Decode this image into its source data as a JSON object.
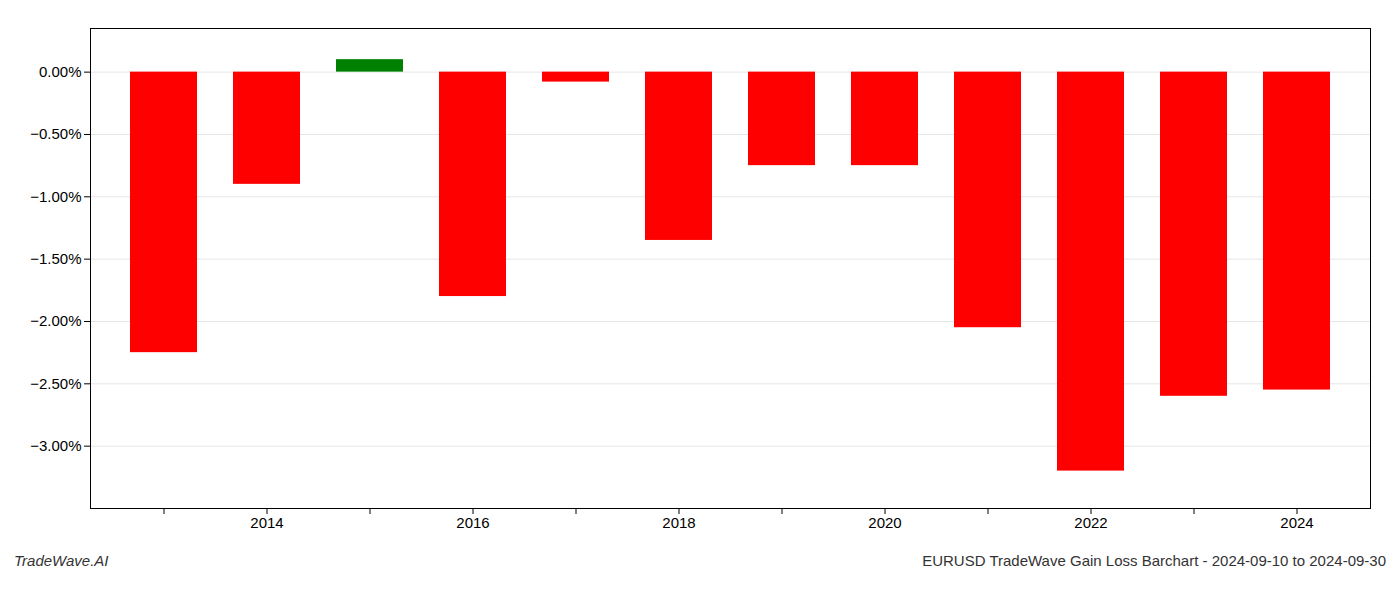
{
  "chart_data": {
    "type": "bar",
    "categories": [
      null,
      "2014",
      null,
      "2016",
      null,
      "2018",
      null,
      "2020",
      null,
      "2022",
      null,
      "2024"
    ],
    "values": [
      -2.25,
      -0.9,
      0.1,
      -1.8,
      -0.08,
      -1.35,
      -0.75,
      -0.75,
      -2.05,
      -3.2,
      -2.6,
      -2.55
    ],
    "colors": [
      "#ff0000",
      "#ff0000",
      "#008000",
      "#ff0000",
      "#ff0000",
      "#ff0000",
      "#ff0000",
      "#ff0000",
      "#ff0000",
      "#ff0000",
      "#ff0000",
      "#ff0000"
    ],
    "ylim": [
      -3.5,
      0.35
    ],
    "yticks": [
      {
        "value": 0.0,
        "label": "0.00%"
      },
      {
        "value": -0.5,
        "label": "−0.50%"
      },
      {
        "value": -1.0,
        "label": "−1.00%"
      },
      {
        "value": -1.5,
        "label": "−1.50%"
      },
      {
        "value": -2.0,
        "label": "−2.00%"
      },
      {
        "value": -2.5,
        "label": "−2.50%"
      },
      {
        "value": -3.0,
        "label": "−3.00%"
      }
    ],
    "grid": true,
    "annotations": [
      "TradeWave.AI",
      "EURUSD TradeWave Gain Loss Barchart - 2024-09-10 to 2024-09-30"
    ]
  }
}
